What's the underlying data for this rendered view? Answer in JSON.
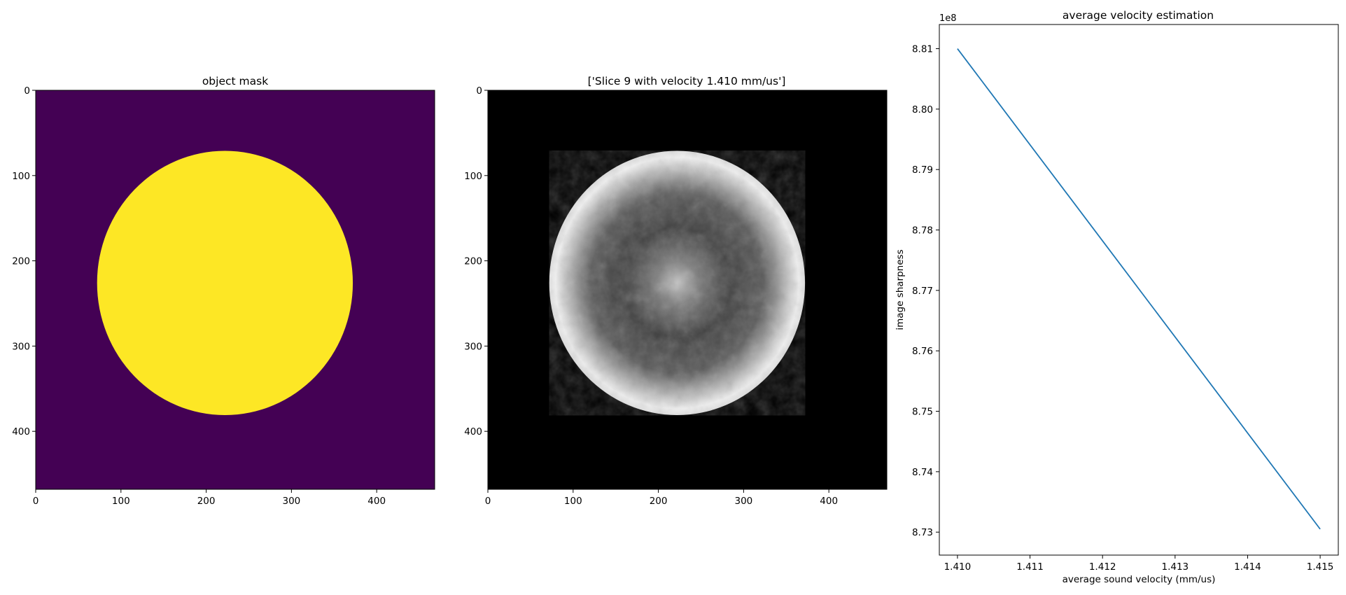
{
  "chart_data": [
    {
      "type": "heatmap",
      "title": "object mask",
      "colormap": "viridis",
      "image_extent": [
        0,
        468
      ],
      "xticks": [
        0,
        100,
        200,
        300,
        400
      ],
      "yticks": [
        0,
        100,
        200,
        300,
        400
      ],
      "mask_ellipse": {
        "cx": 222,
        "cy": 226,
        "rx": 150,
        "ry": 155
      },
      "colors": {
        "background": "#440154",
        "foreground": "#fde725"
      }
    },
    {
      "type": "heatmap",
      "title": "['Slice 9 with velocity 1.410 mm/us']",
      "colormap": "gray",
      "image_extent": [
        0,
        468
      ],
      "xticks": [
        0,
        100,
        200,
        300,
        400
      ],
      "yticks": [
        0,
        100,
        200,
        300,
        400
      ],
      "object_ellipse": {
        "cx": 222,
        "cy": 226,
        "rx": 150,
        "ry": 155
      },
      "colors": {
        "background": "#000000"
      }
    },
    {
      "type": "line",
      "title": "average velocity estimation",
      "xlabel": "average sound velocity (mm/us)",
      "ylabel": "image sharpness",
      "y_offset_label": "1e8",
      "series": [
        {
          "x": [
            1.41,
            1.415
          ],
          "values": [
            8.81,
            8.7305
          ],
          "color": "#1f77b4"
        }
      ],
      "xlim": [
        1.40975,
        1.41525
      ],
      "ylim": [
        8.7262,
        8.814
      ],
      "xticks": [
        1.41,
        1.411,
        1.412,
        1.413,
        1.414,
        1.415
      ],
      "xtick_labels": [
        "1.410",
        "1.411",
        "1.412",
        "1.413",
        "1.414",
        "1.415"
      ],
      "yticks": [
        8.73,
        8.74,
        8.75,
        8.76,
        8.77,
        8.78,
        8.79,
        8.8,
        8.81
      ],
      "ytick_labels": [
        "8.73",
        "8.74",
        "8.75",
        "8.76",
        "8.77",
        "8.78",
        "8.79",
        "8.80",
        "8.81"
      ],
      "grid": false
    }
  ]
}
